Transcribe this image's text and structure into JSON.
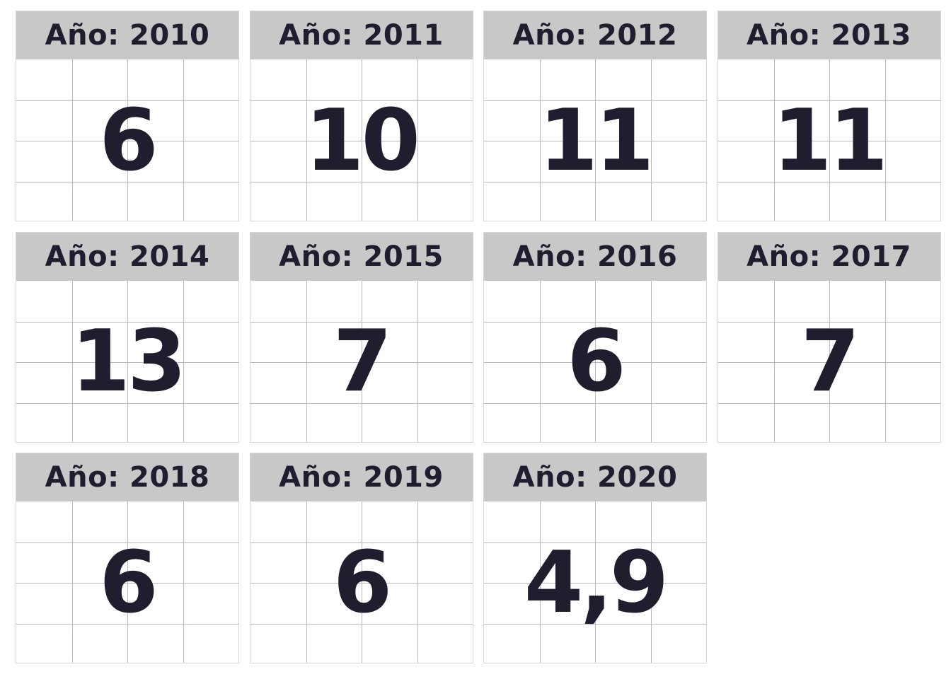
{
  "chart_data": {
    "type": "table",
    "title": "",
    "facet_prefix": "Año: ",
    "categories": [
      "2010",
      "2011",
      "2012",
      "2013",
      "2014",
      "2015",
      "2016",
      "2017",
      "2018",
      "2019",
      "2020"
    ],
    "values": [
      6,
      10,
      11,
      11,
      13,
      7,
      6,
      7,
      6,
      6,
      4.9
    ],
    "labels": [
      "6",
      "10",
      "11",
      "11",
      "13",
      "7",
      "6",
      "7",
      "6",
      "6",
      "4,9"
    ],
    "grid": true,
    "colors": {
      "header_bg": "#c8c8c8",
      "text": "#1f1e2e",
      "grid_line": "#b9b9c4",
      "panel_border": "#d6d6d6"
    }
  }
}
